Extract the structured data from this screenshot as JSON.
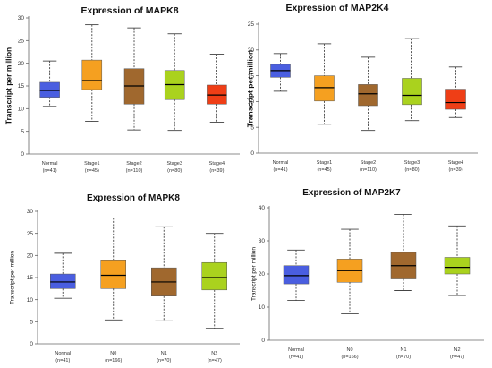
{
  "chart_data": [
    {
      "type": "box",
      "title": "Expression of MAPK8",
      "ylabel": "Transcript per million",
      "ylim": [
        0,
        30
      ],
      "yticks": [
        0,
        5,
        10,
        15,
        20,
        25,
        30
      ],
      "categories": [
        {
          "label": "Normal",
          "n": "(n=41)"
        },
        {
          "label": "Stage1",
          "n": "(n=45)"
        },
        {
          "label": "Stage2",
          "n": "(n=110)"
        },
        {
          "label": "Stage3",
          "n": "(n=80)"
        },
        {
          "label": "Stage4",
          "n": "(n=39)"
        }
      ],
      "boxes": [
        {
          "min": 10.5,
          "q1": 12.5,
          "median": 14.0,
          "q3": 15.8,
          "max": 20.5,
          "color": "#4a5ee0"
        },
        {
          "min": 7.2,
          "q1": 14.2,
          "median": 16.2,
          "q3": 20.7,
          "max": 28.5,
          "color": "#f5a020"
        },
        {
          "min": 5.3,
          "q1": 11.0,
          "median": 15.0,
          "q3": 18.8,
          "max": 27.8,
          "color": "#a0682e"
        },
        {
          "min": 5.2,
          "q1": 12.0,
          "median": 15.3,
          "q3": 18.4,
          "max": 26.5,
          "color": "#aad21e"
        },
        {
          "min": 7.0,
          "q1": 11.0,
          "median": 13.0,
          "q3": 15.2,
          "max": 22.0,
          "color": "#ef3e16"
        }
      ]
    },
    {
      "type": "box",
      "title": "Expression of MAP2K4",
      "ylabel": "Transcript per million",
      "ylim": [
        0,
        25
      ],
      "yticks": [
        0,
        5,
        10,
        15,
        20,
        25
      ],
      "categories": [
        {
          "label": "Normal",
          "n": "(n=41)"
        },
        {
          "label": "Stage1",
          "n": "(n=45)"
        },
        {
          "label": "Stage2",
          "n": "(n=110)"
        },
        {
          "label": "Stage3",
          "n": "(n=80)"
        },
        {
          "label": "Stage4",
          "n": "(n=39)"
        }
      ],
      "boxes": [
        {
          "min": 12.0,
          "q1": 14.7,
          "median": 16.0,
          "q3": 17.2,
          "max": 19.3,
          "color": "#4a5ee0"
        },
        {
          "min": 5.6,
          "q1": 10.1,
          "median": 12.7,
          "q3": 15.0,
          "max": 21.2,
          "color": "#f5a020"
        },
        {
          "min": 4.4,
          "q1": 9.2,
          "median": 11.5,
          "q3": 13.3,
          "max": 18.6,
          "color": "#a0682e"
        },
        {
          "min": 6.3,
          "q1": 9.4,
          "median": 11.2,
          "q3": 14.5,
          "max": 22.2,
          "color": "#aad21e"
        },
        {
          "min": 6.9,
          "q1": 8.5,
          "median": 9.8,
          "q3": 12.4,
          "max": 16.7,
          "color": "#ef3e16"
        }
      ]
    },
    {
      "type": "box",
      "title": "Expression of MAPK8",
      "ylabel": "Transcript per million",
      "ylim": [
        0,
        30
      ],
      "yticks": [
        0,
        5,
        10,
        15,
        20,
        25,
        30
      ],
      "categories": [
        {
          "label": "Normal",
          "n": "(n=41)"
        },
        {
          "label": "N0",
          "n": "(n=166)"
        },
        {
          "label": "N1",
          "n": "(n=70)"
        },
        {
          "label": "N2",
          "n": "(n=47)"
        }
      ],
      "boxes": [
        {
          "min": 10.3,
          "q1": 12.5,
          "median": 14.0,
          "q3": 15.8,
          "max": 20.5,
          "color": "#4a5ee0"
        },
        {
          "min": 5.4,
          "q1": 12.5,
          "median": 15.5,
          "q3": 19.0,
          "max": 28.5,
          "color": "#f5a020"
        },
        {
          "min": 5.2,
          "q1": 10.8,
          "median": 14.0,
          "q3": 17.2,
          "max": 26.5,
          "color": "#a0682e"
        },
        {
          "min": 3.5,
          "q1": 12.2,
          "median": 15.0,
          "q3": 18.4,
          "max": 25.0,
          "color": "#aad21e"
        }
      ]
    },
    {
      "type": "box",
      "title": "Expression of MAP2K7",
      "ylabel": "Transcript per million",
      "ylim": [
        0,
        40
      ],
      "yticks": [
        0,
        10,
        20,
        30,
        40
      ],
      "categories": [
        {
          "label": "Normal",
          "n": "(n=41)"
        },
        {
          "label": "N0",
          "n": "(n=166)"
        },
        {
          "label": "N1",
          "n": "(n=70)"
        },
        {
          "label": "N2",
          "n": "(n=47)"
        }
      ],
      "boxes": [
        {
          "min": 12.0,
          "q1": 17.0,
          "median": 19.5,
          "q3": 22.5,
          "max": 27.2,
          "color": "#4a5ee0"
        },
        {
          "min": 8.0,
          "q1": 17.5,
          "median": 21.0,
          "q3": 24.5,
          "max": 33.5,
          "color": "#f5a020"
        },
        {
          "min": 15.0,
          "q1": 18.5,
          "median": 22.5,
          "q3": 26.5,
          "max": 38.0,
          "color": "#a0682e"
        },
        {
          "min": 13.5,
          "q1": 20.0,
          "median": 22.0,
          "q3": 25.0,
          "max": 34.5,
          "color": "#aad21e"
        }
      ]
    }
  ]
}
